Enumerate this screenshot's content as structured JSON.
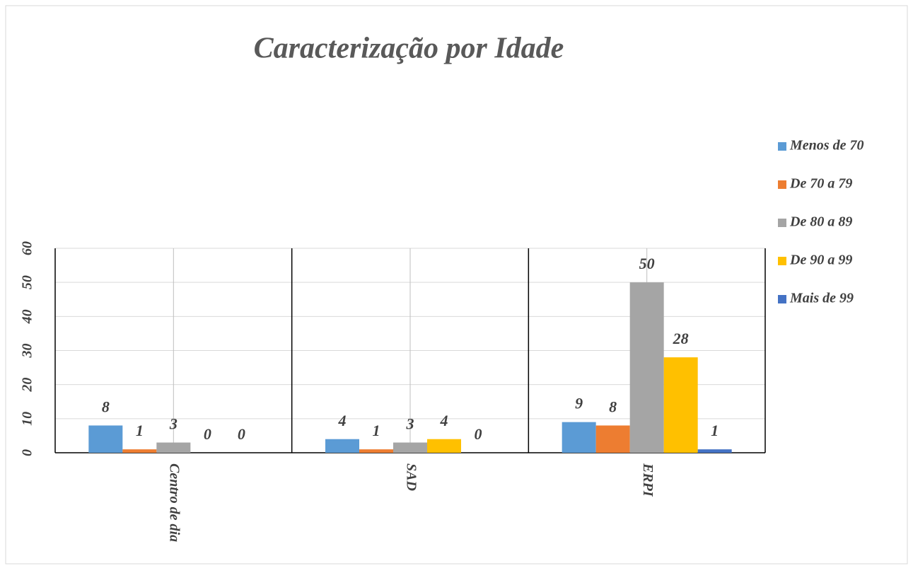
{
  "chart_data": {
    "type": "bar",
    "title": "Caracterização por Idade",
    "categories": [
      "Centro de dia",
      "SAD",
      "ERPI"
    ],
    "series": [
      {
        "name": "Menos de 70",
        "color": "#5b9bd5",
        "values": [
          8,
          4,
          9
        ]
      },
      {
        "name": "De 70 a 79",
        "color": "#ed7d31",
        "values": [
          1,
          1,
          8
        ]
      },
      {
        "name": "De 80 a 89",
        "color": "#a5a5a5",
        "values": [
          3,
          3,
          50
        ]
      },
      {
        "name": "De 90 a 99",
        "color": "#ffc000",
        "values": [
          0,
          4,
          28
        ]
      },
      {
        "name": "Mais de 99",
        "color": "#4472c4",
        "values": [
          0,
          0,
          1
        ]
      }
    ],
    "ylim": [
      0,
      60
    ],
    "yticks": [
      0,
      10,
      20,
      30,
      40,
      50,
      60
    ],
    "grid": true,
    "legend": "right"
  }
}
